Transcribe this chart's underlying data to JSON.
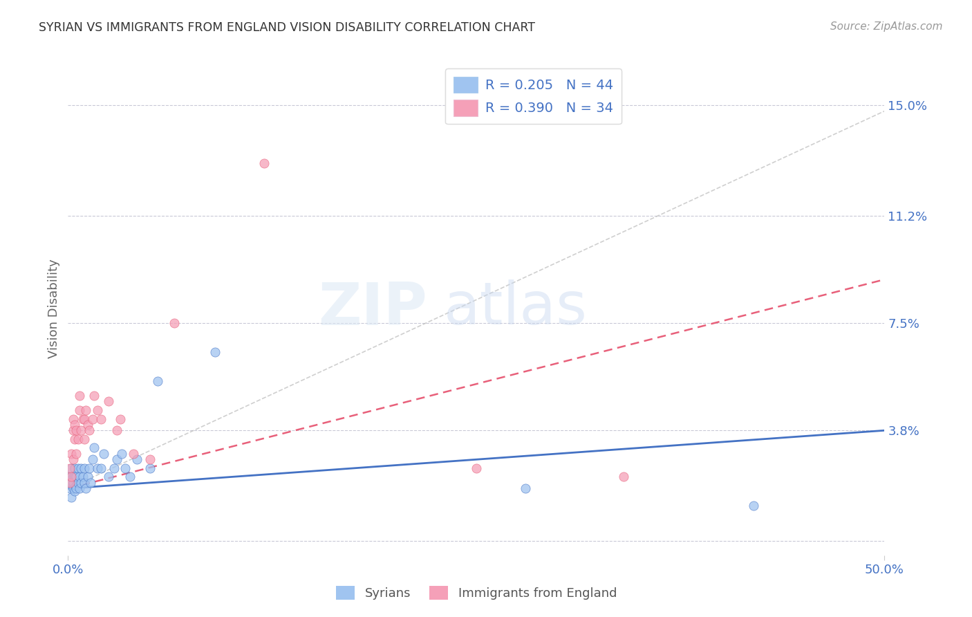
{
  "title": "SYRIAN VS IMMIGRANTS FROM ENGLAND VISION DISABILITY CORRELATION CHART",
  "source": "Source: ZipAtlas.com",
  "ylabel": "Vision Disability",
  "xlim": [
    0.0,
    0.5
  ],
  "ylim": [
    -0.005,
    0.165
  ],
  "yticks": [
    0.0,
    0.038,
    0.075,
    0.112,
    0.15
  ],
  "ytick_labels": [
    "",
    "3.8%",
    "7.5%",
    "11.2%",
    "15.0%"
  ],
  "xticks": [
    0.0,
    0.5
  ],
  "xtick_labels": [
    "0.0%",
    "50.0%"
  ],
  "color_syrian": "#A0C4F0",
  "color_england": "#F5A0B8",
  "color_syrian_line": "#4472C4",
  "color_england_line": "#E8607A",
  "color_gray_line": "#BBBBBB",
  "color_tick_labels": "#4472C4",
  "color_title": "#333333",
  "background": "#FFFFFF",
  "syrians_x": [
    0.001,
    0.001,
    0.002,
    0.002,
    0.002,
    0.003,
    0.003,
    0.003,
    0.004,
    0.004,
    0.004,
    0.005,
    0.005,
    0.005,
    0.006,
    0.006,
    0.007,
    0.007,
    0.008,
    0.008,
    0.009,
    0.01,
    0.01,
    0.011,
    0.012,
    0.013,
    0.014,
    0.015,
    0.016,
    0.018,
    0.02,
    0.022,
    0.025,
    0.028,
    0.03,
    0.033,
    0.035,
    0.038,
    0.042,
    0.05,
    0.055,
    0.09,
    0.28,
    0.42
  ],
  "syrians_y": [
    0.018,
    0.022,
    0.02,
    0.015,
    0.025,
    0.018,
    0.022,
    0.02,
    0.017,
    0.022,
    0.025,
    0.019,
    0.022,
    0.018,
    0.02,
    0.025,
    0.022,
    0.018,
    0.025,
    0.02,
    0.022,
    0.02,
    0.025,
    0.018,
    0.022,
    0.025,
    0.02,
    0.028,
    0.032,
    0.025,
    0.025,
    0.03,
    0.022,
    0.025,
    0.028,
    0.03,
    0.025,
    0.022,
    0.028,
    0.025,
    0.055,
    0.065,
    0.018,
    0.012
  ],
  "england_x": [
    0.001,
    0.001,
    0.002,
    0.002,
    0.003,
    0.003,
    0.003,
    0.004,
    0.004,
    0.005,
    0.005,
    0.006,
    0.007,
    0.007,
    0.008,
    0.009,
    0.01,
    0.01,
    0.011,
    0.012,
    0.013,
    0.015,
    0.016,
    0.018,
    0.02,
    0.025,
    0.03,
    0.032,
    0.04,
    0.05,
    0.065,
    0.12,
    0.25,
    0.34
  ],
  "england_y": [
    0.02,
    0.025,
    0.022,
    0.03,
    0.028,
    0.038,
    0.042,
    0.035,
    0.04,
    0.038,
    0.03,
    0.035,
    0.045,
    0.05,
    0.038,
    0.042,
    0.035,
    0.042,
    0.045,
    0.04,
    0.038,
    0.042,
    0.05,
    0.045,
    0.042,
    0.048,
    0.038,
    0.042,
    0.03,
    0.028,
    0.075,
    0.13,
    0.025,
    0.022
  ],
  "syr_trend_x": [
    0.0,
    0.5
  ],
  "syr_trend_y": [
    0.018,
    0.038
  ],
  "eng_trend_x": [
    0.0,
    0.5
  ],
  "eng_trend_y": [
    0.018,
    0.09
  ],
  "gray_trend_x": [
    0.0,
    0.5
  ],
  "gray_trend_y": [
    0.018,
    0.148
  ]
}
